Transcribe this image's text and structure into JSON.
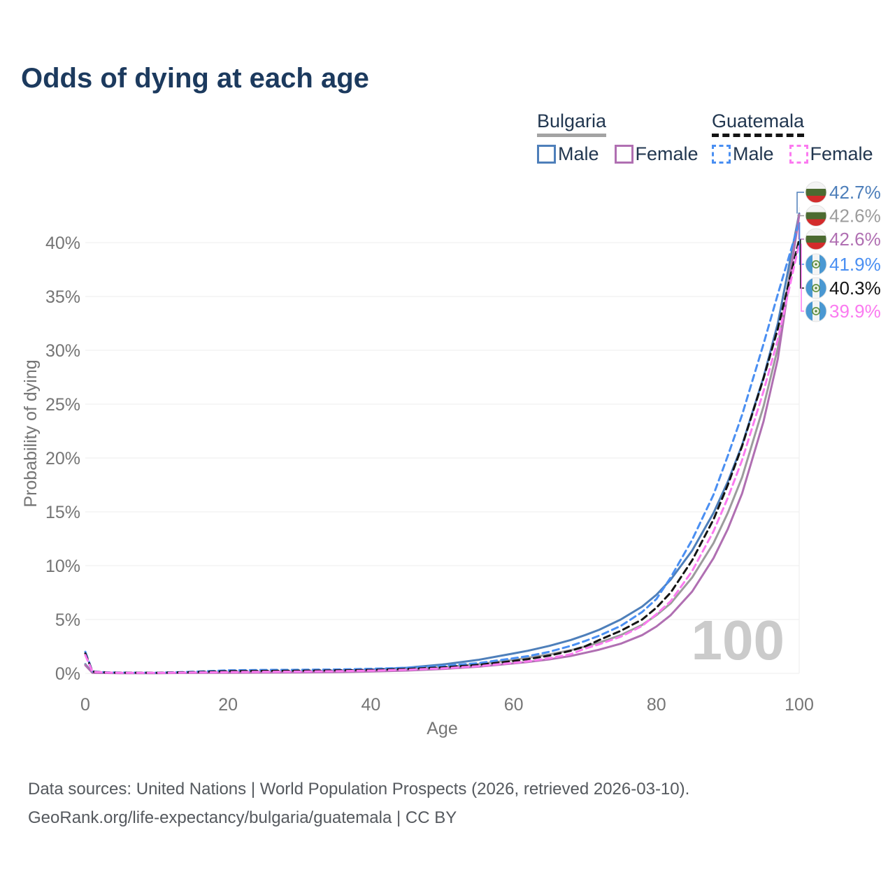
{
  "title": "Odds of dying at each age",
  "legend": {
    "groups": [
      {
        "name": "Bulgaria",
        "line_style": "solid",
        "underline_color": "#a3a3a3",
        "items": [
          {
            "label": "Male",
            "color": "#4e7fba"
          },
          {
            "label": "Female",
            "color": "#b06fb2"
          }
        ]
      },
      {
        "name": "Guatemala",
        "line_style": "dashed",
        "underline_color": "#141414",
        "items": [
          {
            "label": "Male",
            "color": "#4a8ff2"
          },
          {
            "label": "Female",
            "color": "#fb7af0"
          }
        ]
      }
    ]
  },
  "axes": {
    "x": {
      "title": "Age",
      "tick_values": [
        0,
        20,
        40,
        60,
        80,
        100
      ],
      "tick_labels": [
        "0",
        "20",
        "40",
        "60",
        "80",
        "100"
      ]
    },
    "y": {
      "title": "Probability of dying",
      "tick_values": [
        0,
        5,
        10,
        15,
        20,
        25,
        30,
        35,
        40
      ],
      "tick_labels": [
        "0%",
        "5%",
        "10%",
        "15%",
        "20%",
        "25%",
        "30%",
        "35%",
        "40%"
      ]
    }
  },
  "watermark": "100",
  "footer": {
    "line1": "Data sources: United Nations | World Population Prospects (2026, retrieved 2026-03-10).",
    "line2": "GeoRank.org/life-expectancy/bulgaria/guatemala | CC BY"
  },
  "chart_data": {
    "type": "line",
    "title": "Odds of dying at each age",
    "xlabel": "Age",
    "ylabel": "Probability of dying",
    "xlim": [
      0,
      100
    ],
    "ylim": [
      0,
      43.5
    ],
    "y_unit": "%",
    "grid": "horizontal",
    "legend_position": "top-right",
    "x": [
      0,
      1,
      3,
      5,
      10,
      15,
      20,
      25,
      30,
      35,
      40,
      45,
      50,
      55,
      60,
      62,
      65,
      68,
      70,
      72,
      75,
      78,
      80,
      82,
      85,
      88,
      90,
      92,
      95,
      97,
      100
    ],
    "series": [
      {
        "name": "Bulgaria Male",
        "style": "solid",
        "color": "#4e7fba",
        "flag": "bulgaria",
        "end_label": "42.7%",
        "values": [
          0.85,
          0.07,
          0.04,
          0.03,
          0.03,
          0.06,
          0.11,
          0.14,
          0.17,
          0.24,
          0.34,
          0.52,
          0.82,
          1.25,
          1.85,
          2.1,
          2.55,
          3.1,
          3.55,
          4.05,
          5.0,
          6.2,
          7.3,
          8.7,
          11.4,
          14.9,
          17.8,
          21.2,
          27.5,
          32.5,
          42.7
        ]
      },
      {
        "name": "Bulgaria",
        "style": "solid",
        "color": "#9c9c9c",
        "flag": "bulgaria",
        "end_label": "42.6%",
        "values": [
          0.8,
          0.06,
          0.03,
          0.025,
          0.025,
          0.05,
          0.085,
          0.105,
          0.13,
          0.18,
          0.24,
          0.36,
          0.56,
          0.85,
          1.25,
          1.45,
          1.75,
          2.15,
          2.5,
          2.85,
          3.55,
          4.5,
          5.4,
          6.5,
          8.9,
          12.1,
          14.9,
          18.2,
          24.8,
          30.2,
          42.6
        ]
      },
      {
        "name": "Bulgaria Female",
        "style": "solid",
        "color": "#b06fb2",
        "flag": "bulgaria",
        "end_label": "42.6%",
        "values": [
          0.75,
          0.055,
          0.03,
          0.02,
          0.02,
          0.04,
          0.055,
          0.065,
          0.085,
          0.12,
          0.17,
          0.26,
          0.4,
          0.62,
          0.92,
          1.06,
          1.3,
          1.62,
          1.9,
          2.2,
          2.75,
          3.55,
          4.35,
          5.4,
          7.6,
          10.7,
          13.4,
          16.7,
          23.4,
          29.2,
          42.6
        ]
      },
      {
        "name": "Guatemala Male",
        "style": "dashed",
        "color": "#4a8ff2",
        "flag": "guatemala",
        "end_label": "41.9%",
        "values": [
          2.0,
          0.18,
          0.09,
          0.07,
          0.06,
          0.14,
          0.28,
          0.32,
          0.33,
          0.36,
          0.42,
          0.52,
          0.68,
          0.95,
          1.4,
          1.6,
          2.0,
          2.55,
          3.0,
          3.5,
          4.4,
          5.7,
          6.9,
          8.9,
          12.4,
          16.6,
          20.2,
          24.0,
          30.6,
          35.2,
          41.9
        ]
      },
      {
        "name": "Guatemala",
        "style": "dashed",
        "color": "#141414",
        "flag": "guatemala",
        "end_label": "40.3%",
        "values": [
          1.85,
          0.16,
          0.08,
          0.06,
          0.05,
          0.11,
          0.2,
          0.23,
          0.24,
          0.27,
          0.32,
          0.41,
          0.55,
          0.78,
          1.15,
          1.32,
          1.65,
          2.1,
          2.5,
          3.1,
          3.95,
          5.0,
          6.1,
          7.5,
          10.5,
          14.3,
          17.5,
          21.1,
          27.4,
          32.0,
          40.3
        ]
      },
      {
        "name": "Guatemala Female",
        "style": "dashed",
        "color": "#fb7af0",
        "flag": "guatemala",
        "end_label": "39.9%",
        "values": [
          1.7,
          0.15,
          0.07,
          0.055,
          0.045,
          0.08,
          0.12,
          0.14,
          0.16,
          0.2,
          0.25,
          0.33,
          0.46,
          0.66,
          0.98,
          1.12,
          1.4,
          1.78,
          2.3,
          2.7,
          3.4,
          4.4,
          5.5,
          6.7,
          9.5,
          13.2,
          16.3,
          19.8,
          26.2,
          31.0,
          39.9
        ]
      }
    ]
  }
}
